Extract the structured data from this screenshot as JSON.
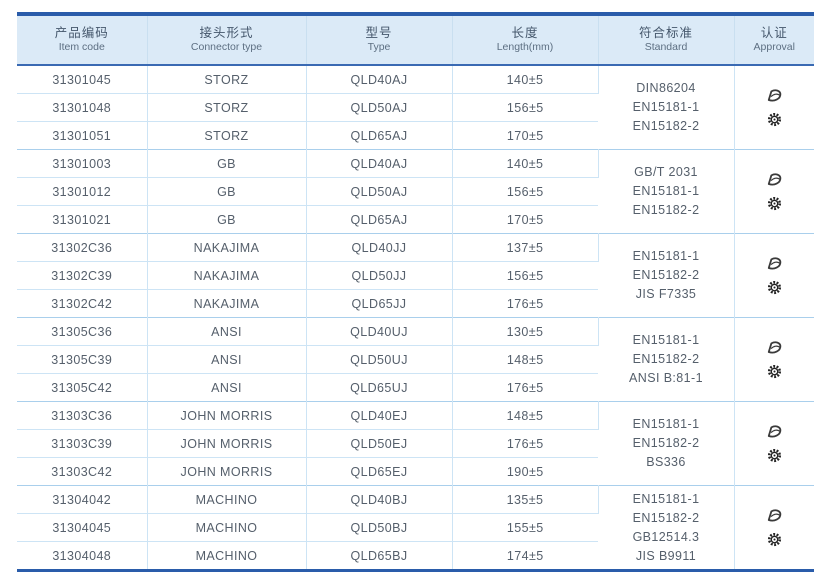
{
  "colors": {
    "accent_border": "#2a5caa",
    "header_bg": "#dbeaf7",
    "grid_line": "#cde4f5",
    "group_line": "#a9cfec",
    "text": "#555f6b",
    "icon": "#333333"
  },
  "table": {
    "columns": [
      {
        "zh": "产品编码",
        "en": "Item code"
      },
      {
        "zh": "接头形式",
        "en": "Connector type"
      },
      {
        "zh": "型号",
        "en": "Type"
      },
      {
        "zh": "长度",
        "en": "Length(mm)"
      },
      {
        "zh": "符合标准",
        "en": "Standard"
      },
      {
        "zh": "认证",
        "en": "Approval"
      }
    ],
    "groups": [
      {
        "rows": [
          {
            "code": "31301045",
            "connector": "STORZ",
            "type": "QLD40AJ",
            "length": "140±5"
          },
          {
            "code": "31301048",
            "connector": "STORZ",
            "type": "QLD50AJ",
            "length": "156±5"
          },
          {
            "code": "31301051",
            "connector": "STORZ",
            "type": "QLD65AJ",
            "length": "170±5"
          }
        ],
        "standards": [
          "DIN86204",
          "EN15181-1",
          "EN15182-2"
        ],
        "approval_icons": [
          "cert-logo-icon",
          "wheelmark-icon"
        ]
      },
      {
        "rows": [
          {
            "code": "31301003",
            "connector": "GB",
            "type": "QLD40AJ",
            "length": "140±5"
          },
          {
            "code": "31301012",
            "connector": "GB",
            "type": "QLD50AJ",
            "length": "156±5"
          },
          {
            "code": "31301021",
            "connector": "GB",
            "type": "QLD65AJ",
            "length": "170±5"
          }
        ],
        "standards": [
          "GB/T 2031",
          "EN15181-1",
          "EN15182-2"
        ],
        "approval_icons": [
          "cert-logo-icon",
          "wheelmark-icon"
        ]
      },
      {
        "rows": [
          {
            "code": "31302C36",
            "connector": "NAKAJIMA",
            "type": "QLD40JJ",
            "length": "137±5"
          },
          {
            "code": "31302C39",
            "connector": "NAKAJIMA",
            "type": "QLD50JJ",
            "length": "156±5"
          },
          {
            "code": "31302C42",
            "connector": "NAKAJIMA",
            "type": "QLD65JJ",
            "length": "176±5"
          }
        ],
        "standards": [
          "EN15181-1",
          "EN15182-2",
          "JIS F7335"
        ],
        "approval_icons": [
          "cert-logo-icon",
          "wheelmark-icon"
        ]
      },
      {
        "rows": [
          {
            "code": "31305C36",
            "connector": "ANSI",
            "type": "QLD40UJ",
            "length": "130±5"
          },
          {
            "code": "31305C39",
            "connector": "ANSI",
            "type": "QLD50UJ",
            "length": "148±5"
          },
          {
            "code": "31305C42",
            "connector": "ANSI",
            "type": "QLD65UJ",
            "length": "176±5"
          }
        ],
        "standards": [
          "EN15181-1",
          "EN15182-2",
          "ANSI B:81-1"
        ],
        "approval_icons": [
          "cert-logo-icon",
          "wheelmark-icon"
        ]
      },
      {
        "rows": [
          {
            "code": "31303C36",
            "connector": "JOHN MORRIS",
            "type": "QLD40EJ",
            "length": "148±5"
          },
          {
            "code": "31303C39",
            "connector": "JOHN MORRIS",
            "type": "QLD50EJ",
            "length": "176±5"
          },
          {
            "code": "31303C42",
            "connector": "JOHN MORRIS",
            "type": "QLD65EJ",
            "length": "190±5"
          }
        ],
        "standards": [
          "EN15181-1",
          "EN15182-2",
          "BS336"
        ],
        "approval_icons": [
          "cert-logo-icon",
          "wheelmark-icon"
        ]
      },
      {
        "rows": [
          {
            "code": "31304042",
            "connector": "MACHINO",
            "type": "QLD40BJ",
            "length": "135±5"
          },
          {
            "code": "31304045",
            "connector": "MACHINO",
            "type": "QLD50BJ",
            "length": "155±5"
          },
          {
            "code": "31304048",
            "connector": "MACHINO",
            "type": "QLD65BJ",
            "length": "174±5"
          }
        ],
        "standards": [
          "EN15181-1",
          "EN15182-2",
          "GB12514.3",
          "JIS B9911"
        ],
        "approval_icons": [
          "cert-logo-icon",
          "wheelmark-icon"
        ]
      }
    ]
  }
}
